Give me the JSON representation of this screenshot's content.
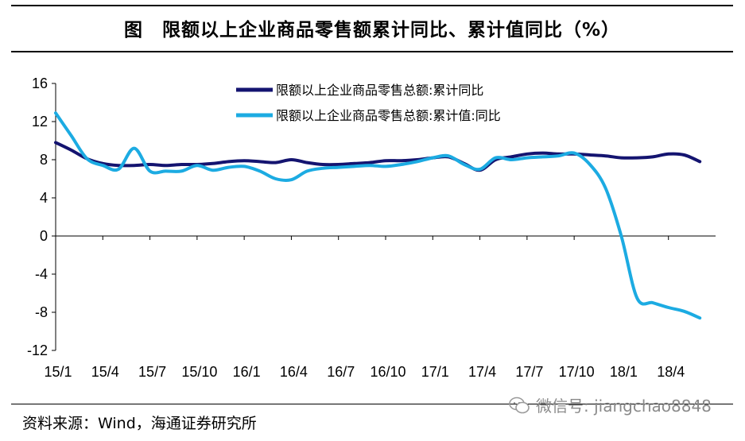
{
  "title": "图　限额以上企业商品零售额累计同比、累计值同比（%）",
  "source": "资料来源：Wind，海通证券研究所",
  "watermark": "微信号: jiangchao8848",
  "colors": {
    "series1": "#141470",
    "series2": "#1cabe2"
  },
  "chart_data": {
    "type": "line",
    "title": "图　限额以上企业商品零售额累计同比、累计值同比（%）",
    "xlabel": "",
    "ylabel": "",
    "ylim": [
      -12,
      16
    ],
    "yticks": [
      16,
      12,
      8,
      4,
      0,
      -4,
      -8,
      -12
    ],
    "x": [
      "15/1",
      "15/2",
      "15/3",
      "15/4",
      "15/5",
      "15/6",
      "15/7",
      "15/8",
      "15/9",
      "15/10",
      "15/11",
      "15/12",
      "16/1",
      "16/2",
      "16/3",
      "16/4",
      "16/5",
      "16/6",
      "16/7",
      "16/8",
      "16/9",
      "16/10",
      "16/11",
      "16/12",
      "17/1",
      "17/2",
      "17/3",
      "17/4",
      "17/5",
      "17/6",
      "17/7",
      "17/8",
      "17/9",
      "17/10",
      "17/11",
      "17/12",
      "18/1",
      "18/2",
      "18/3",
      "18/4",
      "18/5",
      "18/6"
    ],
    "xticks": [
      "15/1",
      "15/4",
      "15/7",
      "15/10",
      "16/1",
      "16/4",
      "16/7",
      "16/10",
      "17/1",
      "17/4",
      "17/7",
      "17/10",
      "18/1",
      "18/4"
    ],
    "grid": false,
    "legend": "top",
    "series": [
      {
        "name": "限额以上企业商品零售总额:累计同比",
        "values": [
          9.8,
          9.0,
          8.1,
          7.6,
          7.4,
          7.4,
          7.5,
          7.4,
          7.5,
          7.5,
          7.6,
          7.8,
          7.9,
          7.8,
          7.7,
          8.0,
          7.7,
          7.5,
          7.5,
          7.6,
          7.7,
          7.9,
          7.9,
          8.0,
          8.2,
          8.3,
          7.6,
          6.9,
          8.0,
          8.3,
          8.6,
          8.7,
          8.6,
          8.6,
          8.5,
          8.4,
          8.2,
          8.2,
          8.3,
          8.6,
          8.5,
          7.8
        ]
      },
      {
        "name": "限额以上企业商品零售总额:累计值:同比",
        "values": [
          12.9,
          10.5,
          8.1,
          7.4,
          7.0,
          9.2,
          6.8,
          6.8,
          6.8,
          7.4,
          6.9,
          7.2,
          7.3,
          6.8,
          6.0,
          5.9,
          6.8,
          7.1,
          7.2,
          7.3,
          7.4,
          7.3,
          7.5,
          7.8,
          8.2,
          8.4,
          7.5,
          7.0,
          8.2,
          8.0,
          8.2,
          8.3,
          8.4,
          8.7,
          7.5,
          5.0,
          0.0,
          -6.5,
          -7.0,
          -7.5,
          -7.9,
          -8.6
        ]
      }
    ]
  }
}
